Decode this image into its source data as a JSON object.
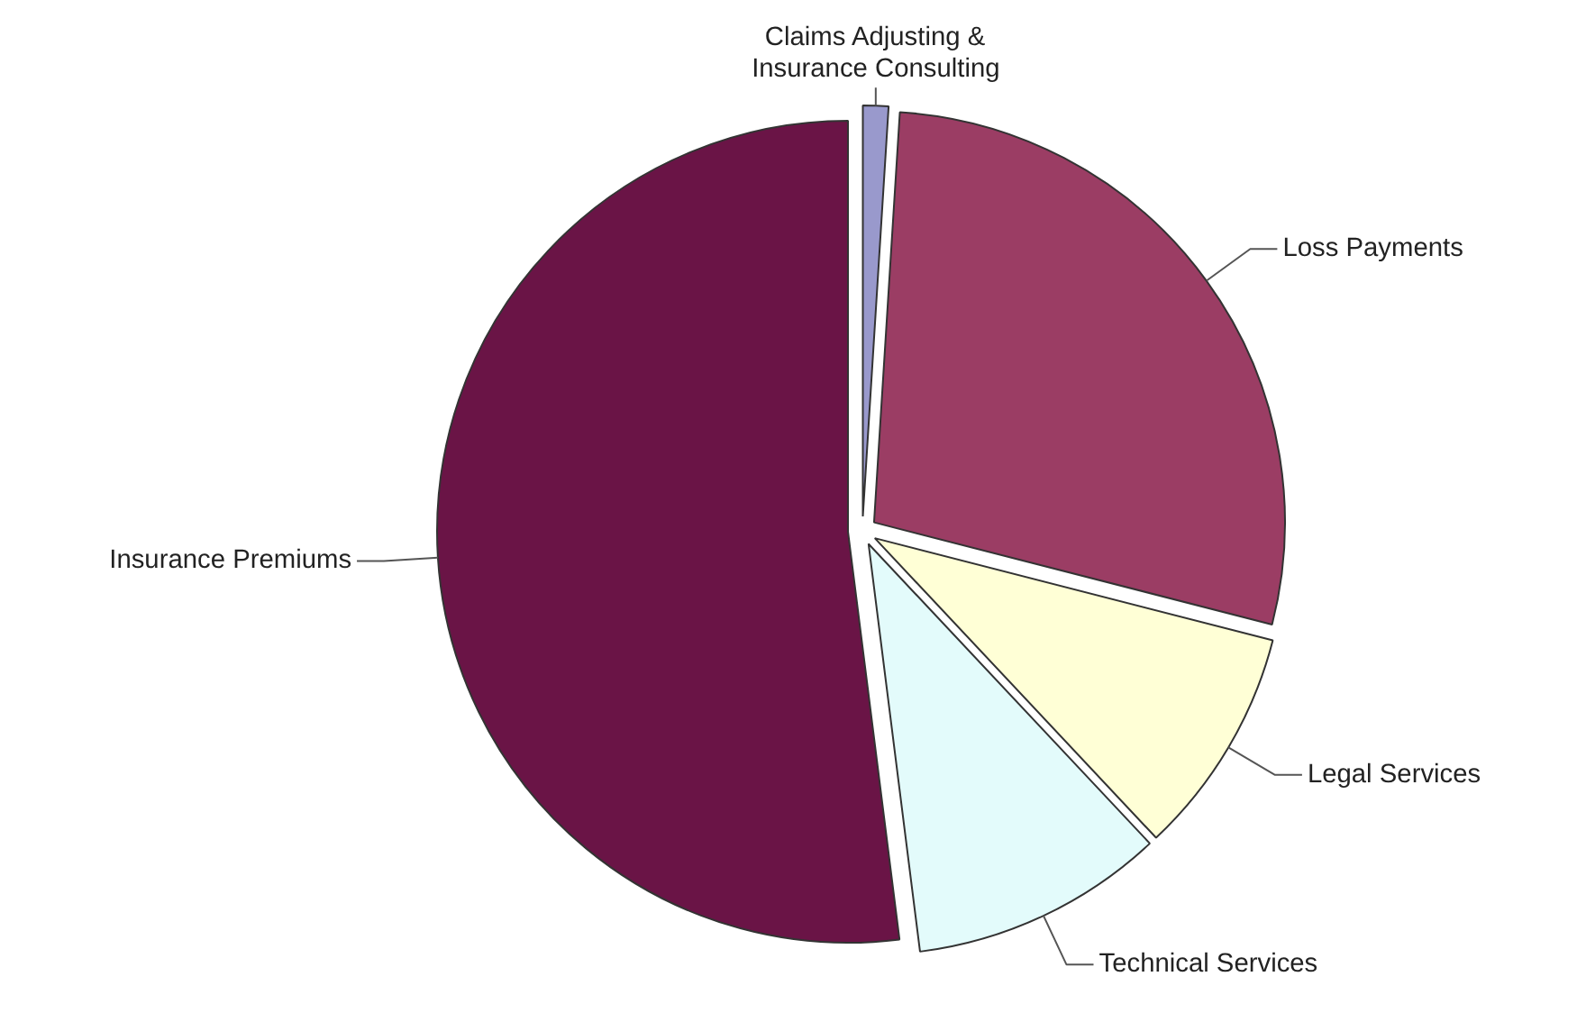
{
  "chart_data": {
    "type": "pie",
    "categories": [
      "Claims Adjusting & Insurance Consulting",
      "Loss Payments",
      "Legal Services",
      "Technical Services",
      "Insurance Premiums"
    ],
    "values": [
      1,
      28,
      9,
      10,
      52
    ],
    "colors": [
      "#9999cc",
      "#9b3d64",
      "#ffffd6",
      "#e3fbfb",
      "#6a1446"
    ]
  }
}
